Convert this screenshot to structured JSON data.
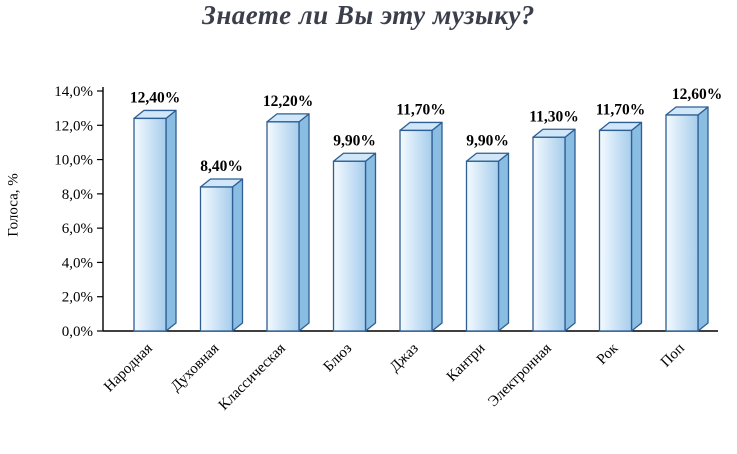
{
  "chart_data": {
    "type": "bar",
    "title": "Знаете ли Вы эту музыку?",
    "ylabel": "Голоса, %",
    "xlabel": "",
    "categories": [
      "Народная",
      "Духовная",
      "Классическая",
      "Блюз",
      "Джаз",
      "Кантри",
      "Электронная",
      "Рок",
      "Поп"
    ],
    "values": [
      12.4,
      8.4,
      12.2,
      9.9,
      11.7,
      9.9,
      11.3,
      11.7,
      12.6
    ],
    "value_labels": [
      "12,40%",
      "8,40%",
      "12,20%",
      "9,90%",
      "11,70%",
      "9,90%",
      "11,30%",
      "11,70%",
      "12,60%"
    ],
    "yticks_values": [
      0,
      2,
      4,
      6,
      8,
      10,
      12,
      14
    ],
    "yticks_labels": [
      "0,0%",
      "2,0%",
      "4,0%",
      "6,0%",
      "8,0%",
      "10,0%",
      "12,0%",
      "14,0%"
    ],
    "ylim": [
      0,
      14
    ],
    "grid": false,
    "legend": false,
    "style": "3d-bars",
    "colors": {
      "bar_front_light": "#f4faff",
      "bar_front_dark": "#a6cdec",
      "bar_top": "#cfe7f9",
      "bar_side": "#8abde2",
      "bar_outline": "#2e5e93",
      "axis": "#000000",
      "title": "#3b3f4c"
    }
  }
}
